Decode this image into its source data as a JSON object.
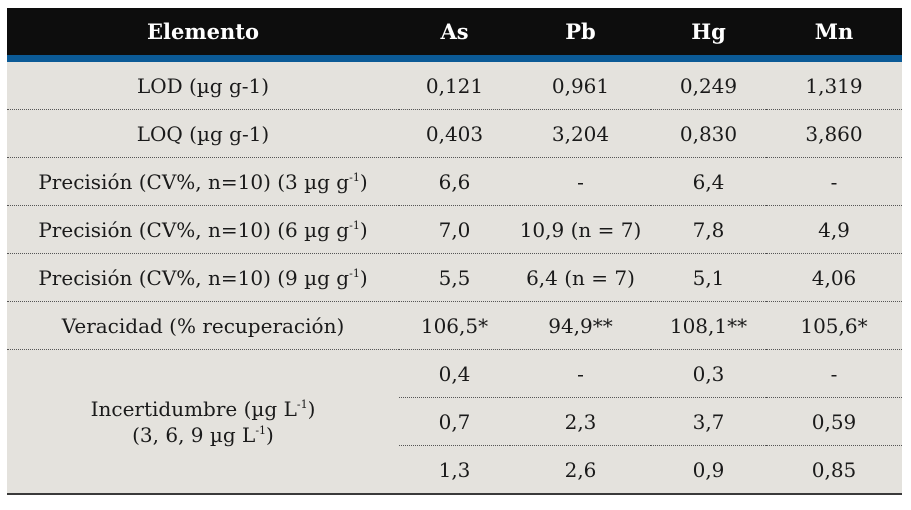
{
  "header": {
    "col0": "Elemento",
    "col1": "As",
    "col2": "Pb",
    "col3": "Hg",
    "col4": "Mn"
  },
  "rows": [
    {
      "label": "LOD (µg g-1)",
      "values": [
        "0,121",
        "0,961",
        "0,249",
        "1,319"
      ]
    },
    {
      "label": "LOQ (µg g-1)",
      "values": [
        "0,403",
        "3,204",
        "0,830",
        "3,860"
      ]
    },
    {
      "label_pre": "Precisión (CV%, n=10) (3 µg g",
      "label_sup": "-1",
      "label_post": ")",
      "values": [
        "6,6",
        "-",
        "6,4",
        "-"
      ]
    },
    {
      "label_pre": "Precisión (CV%, n=10) (6 µg g",
      "label_sup": "-1",
      "label_post": ")",
      "values": [
        "7,0",
        "10,9 (n = 7)",
        "7,8",
        "4,9"
      ]
    },
    {
      "label_pre": "Precisión (CV%, n=10) (9 µg g",
      "label_sup": "-1",
      "label_post": ")",
      "values": [
        "5,5",
        "6,4 (n = 7)",
        "5,1",
        "4,06"
      ]
    },
    {
      "label": "Veracidad (% recuperación)",
      "values": [
        "106,5*",
        "94,9**",
        "108,1**",
        "105,6*"
      ]
    }
  ],
  "uncertainty": {
    "line1_pre": "Incertidumbre (µg L",
    "line1_sup": "-1",
    "line1_post": ")",
    "line2_pre": "(3, 6, 9 µg L",
    "line2_sup": "-1",
    "line2_post": ")",
    "rows": [
      [
        "0,4",
        "-",
        "0,3",
        "-"
      ],
      [
        "0,7",
        "2,3",
        "3,7",
        "0,59"
      ],
      [
        "1,3",
        "2,6",
        "0,9",
        "0,85"
      ]
    ]
  }
}
